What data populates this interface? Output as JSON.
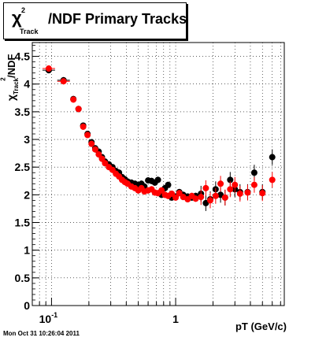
{
  "title": {
    "prefix": "χ",
    "superscript": "2",
    "subscript": "Track",
    "main": "/NDF  Primary Tracks"
  },
  "ylabel": {
    "chi": "χ",
    "sup": "2",
    "sub": "Track",
    "rest": "/NDF"
  },
  "xlabel": "pT (GeV/c)",
  "timestamp": "Mon Oct 31 10:26:04 2011",
  "colors": {
    "series_black": "#000000",
    "series_red": "#ff0000",
    "grid": "#000000"
  },
  "chart_data": {
    "type": "scatter",
    "x_scale": "log",
    "xlim": [
      0.07,
      7.5
    ],
    "ylim": [
      0,
      4.75
    ],
    "grid": true,
    "x_tick_labels": [
      {
        "value": 0.1,
        "base": "10",
        "exp": "-1"
      },
      {
        "value": 1,
        "text": "1"
      }
    ],
    "y_ticks": [
      0,
      0.5,
      1,
      1.5,
      2,
      2.5,
      3,
      3.5,
      4,
      4.5
    ],
    "y_tick_labels": [
      "0",
      "0.5",
      "1",
      "1.5",
      "2",
      "2.5",
      "3",
      "3.5",
      "4",
      "4.5"
    ],
    "series": [
      {
        "color": "#000000",
        "x": [
          0.095,
          0.125,
          0.15,
          0.165,
          0.18,
          0.195,
          0.21,
          0.225,
          0.24,
          0.255,
          0.27,
          0.29,
          0.31,
          0.33,
          0.35,
          0.37,
          0.39,
          0.41,
          0.44,
          0.47,
          0.5,
          0.53,
          0.56,
          0.6,
          0.64,
          0.68,
          0.72,
          0.77,
          0.82,
          0.87,
          0.93,
          1.0,
          1.07,
          1.15,
          1.25,
          1.35,
          1.45,
          1.6,
          1.75,
          1.9,
          2.1,
          2.3,
          2.5,
          2.75,
          3.0,
          3.3,
          3.8,
          4.3,
          5.0,
          6.0
        ],
        "y": [
          4.25,
          4.07,
          3.73,
          3.55,
          3.25,
          3.1,
          2.95,
          2.84,
          2.78,
          2.68,
          2.6,
          2.55,
          2.5,
          2.43,
          2.4,
          2.32,
          2.28,
          2.24,
          2.22,
          2.2,
          2.18,
          2.2,
          2.15,
          2.26,
          2.25,
          2.22,
          2.27,
          2.0,
          2.12,
          2.18,
          1.95,
          1.97,
          2.05,
          2.0,
          1.97,
          1.95,
          1.98,
          2.02,
          1.85,
          1.92,
          2.1,
          2.0,
          1.95,
          2.27,
          2.1,
          2.05,
          2.05,
          2.4,
          2.05,
          2.68
        ]
      },
      {
        "color": "#ff0000",
        "x": [
          0.095,
          0.125,
          0.15,
          0.165,
          0.18,
          0.195,
          0.21,
          0.225,
          0.24,
          0.255,
          0.27,
          0.29,
          0.31,
          0.33,
          0.35,
          0.37,
          0.39,
          0.41,
          0.44,
          0.47,
          0.5,
          0.53,
          0.56,
          0.6,
          0.64,
          0.68,
          0.72,
          0.77,
          0.82,
          0.87,
          0.93,
          1.0,
          1.07,
          1.15,
          1.25,
          1.35,
          1.45,
          1.6,
          1.75,
          1.9,
          2.1,
          2.3,
          2.5,
          2.75,
          3.0,
          3.3,
          3.8,
          4.3,
          5.0,
          6.0
        ],
        "y": [
          4.28,
          4.05,
          3.72,
          3.55,
          3.23,
          3.08,
          2.92,
          2.82,
          2.73,
          2.65,
          2.57,
          2.5,
          2.45,
          2.38,
          2.33,
          2.27,
          2.23,
          2.2,
          2.15,
          2.12,
          2.08,
          2.12,
          2.06,
          2.08,
          2.1,
          2.04,
          2.03,
          2.08,
          2.0,
          1.98,
          2.02,
          1.95,
          2.03,
          1.96,
          1.92,
          1.98,
          1.93,
          1.96,
          2.12,
          1.9,
          1.98,
          2.2,
          1.95,
          2.1,
          2.18,
          2.02,
          2.04,
          2.18,
          2.03,
          2.27
        ]
      }
    ]
  }
}
